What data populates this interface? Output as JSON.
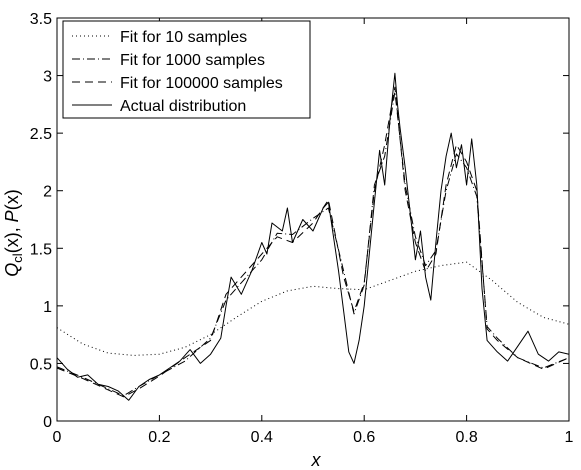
{
  "chart_data": {
    "type": "line",
    "title": "",
    "xlabel": "x",
    "ylabel": {
      "q": "Q",
      "q_sub": "cl",
      "q_arg": "(x), ",
      "p": "P",
      "p_arg": "(x)"
    },
    "xlim": [
      0,
      1
    ],
    "ylim": [
      0,
      3.5
    ],
    "xticks": [
      {
        "value": 0,
        "label": "0"
      },
      {
        "value": 0.2,
        "label": "0.2"
      },
      {
        "value": 0.4,
        "label": "0.4"
      },
      {
        "value": 0.6,
        "label": "0.6"
      },
      {
        "value": 0.8,
        "label": "0.8"
      },
      {
        "value": 1,
        "label": "1"
      }
    ],
    "yticks": [
      {
        "value": 0,
        "label": "0"
      },
      {
        "value": 0.5,
        "label": "0.5"
      },
      {
        "value": 1,
        "label": "1"
      },
      {
        "value": 1.5,
        "label": "1.5"
      },
      {
        "value": 2,
        "label": "2"
      },
      {
        "value": 2.5,
        "label": "2.5"
      },
      {
        "value": 3,
        "label": "3"
      },
      {
        "value": 3.5,
        "label": "3.5"
      }
    ],
    "grid": false,
    "legend_position": "top-left",
    "series": [
      {
        "name": "Fit for 10 samples",
        "style": "dotted",
        "x": [
          0,
          0.05,
          0.1,
          0.15,
          0.2,
          0.25,
          0.3,
          0.35,
          0.4,
          0.45,
          0.5,
          0.55,
          0.6,
          0.65,
          0.7,
          0.75,
          0.8,
          0.85,
          0.9,
          0.95,
          1.0
        ],
        "y": [
          0.81,
          0.67,
          0.59,
          0.57,
          0.58,
          0.64,
          0.75,
          0.9,
          1.04,
          1.13,
          1.17,
          1.15,
          1.14,
          1.22,
          1.3,
          1.35,
          1.38,
          1.22,
          1.03,
          0.9,
          0.84
        ]
      },
      {
        "name": "Fit for 1000 samples",
        "style": "dashdot",
        "x": [
          0,
          0.05,
          0.1,
          0.13,
          0.16,
          0.2,
          0.25,
          0.3,
          0.33,
          0.36,
          0.4,
          0.43,
          0.46,
          0.5,
          0.53,
          0.56,
          0.58,
          0.6,
          0.62,
          0.64,
          0.66,
          0.68,
          0.7,
          0.72,
          0.74,
          0.76,
          0.78,
          0.8,
          0.82,
          0.84,
          0.86,
          0.9,
          0.95,
          1.0
        ],
        "y": [
          0.47,
          0.38,
          0.28,
          0.22,
          0.3,
          0.4,
          0.52,
          0.72,
          1.05,
          1.2,
          1.4,
          1.63,
          1.62,
          1.76,
          1.85,
          1.3,
          0.93,
          1.18,
          2.05,
          2.3,
          2.86,
          2.05,
          1.6,
          1.35,
          1.48,
          2.0,
          2.32,
          2.2,
          1.95,
          0.82,
          0.72,
          0.55,
          0.46,
          0.55
        ]
      },
      {
        "name": "Fit for 100000 samples",
        "style": "dashed",
        "x": [
          0,
          0.05,
          0.1,
          0.13,
          0.16,
          0.2,
          0.25,
          0.3,
          0.33,
          0.36,
          0.4,
          0.43,
          0.46,
          0.5,
          0.53,
          0.56,
          0.58,
          0.6,
          0.62,
          0.64,
          0.66,
          0.68,
          0.7,
          0.72,
          0.74,
          0.76,
          0.78,
          0.8,
          0.82,
          0.84,
          0.86,
          0.9,
          0.95,
          1.0
        ],
        "y": [
          0.46,
          0.37,
          0.27,
          0.21,
          0.28,
          0.39,
          0.55,
          0.7,
          1.1,
          1.25,
          1.45,
          1.6,
          1.55,
          1.72,
          1.92,
          1.25,
          0.95,
          1.2,
          2.0,
          2.4,
          2.9,
          2.0,
          1.55,
          1.3,
          1.45,
          2.05,
          2.4,
          2.25,
          2.0,
          0.8,
          0.7,
          0.55,
          0.45,
          0.55
        ]
      },
      {
        "name": "Actual distribution",
        "style": "solid",
        "x": [
          0,
          0.02,
          0.04,
          0.06,
          0.08,
          0.1,
          0.12,
          0.14,
          0.16,
          0.18,
          0.2,
          0.22,
          0.24,
          0.26,
          0.28,
          0.3,
          0.32,
          0.33,
          0.34,
          0.36,
          0.38,
          0.4,
          0.41,
          0.42,
          0.44,
          0.45,
          0.46,
          0.48,
          0.5,
          0.52,
          0.53,
          0.54,
          0.55,
          0.56,
          0.57,
          0.58,
          0.59,
          0.6,
          0.61,
          0.62,
          0.63,
          0.64,
          0.65,
          0.66,
          0.665,
          0.67,
          0.68,
          0.69,
          0.7,
          0.71,
          0.72,
          0.73,
          0.74,
          0.75,
          0.76,
          0.77,
          0.78,
          0.79,
          0.8,
          0.81,
          0.82,
          0.83,
          0.84,
          0.86,
          0.88,
          0.9,
          0.92,
          0.94,
          0.96,
          0.98,
          1.0
        ],
        "y": [
          0.55,
          0.45,
          0.38,
          0.4,
          0.32,
          0.3,
          0.26,
          0.18,
          0.3,
          0.36,
          0.4,
          0.46,
          0.52,
          0.62,
          0.5,
          0.58,
          0.72,
          1.0,
          1.25,
          1.1,
          1.3,
          1.55,
          1.45,
          1.72,
          1.65,
          1.85,
          1.55,
          1.75,
          1.65,
          1.85,
          1.9,
          1.6,
          1.3,
          0.95,
          0.6,
          0.5,
          0.7,
          1.0,
          1.45,
          1.9,
          2.35,
          2.05,
          2.6,
          3.02,
          2.75,
          2.55,
          2.2,
          1.8,
          1.4,
          1.65,
          1.25,
          1.05,
          1.55,
          2.0,
          2.3,
          2.5,
          2.2,
          2.4,
          2.05,
          2.45,
          2.05,
          1.15,
          0.7,
          0.6,
          0.52,
          0.65,
          0.78,
          0.58,
          0.52,
          0.6,
          0.58
        ]
      }
    ]
  }
}
